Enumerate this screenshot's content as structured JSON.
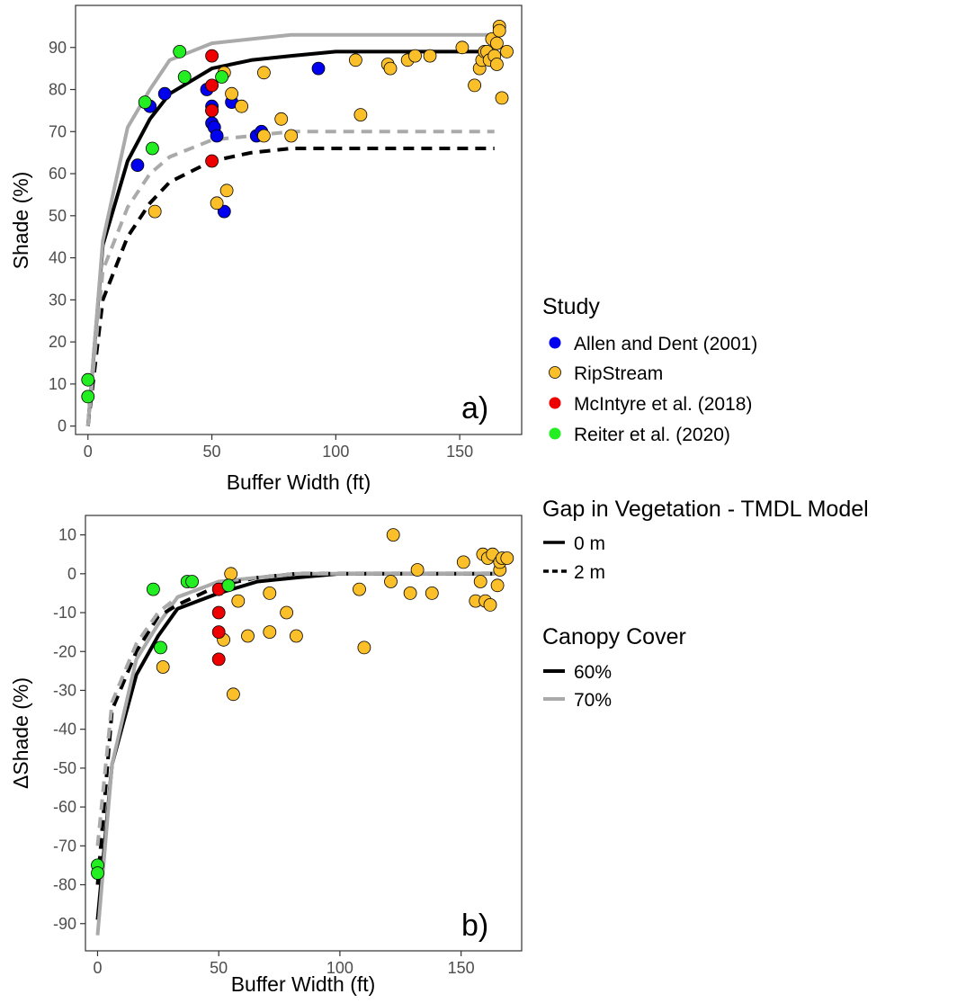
{
  "chart_data": [
    {
      "type": "scatter",
      "panel_label": "a)",
      "xlabel": "Buffer Width (ft)",
      "ylabel": "Shade (%)",
      "xlim": [
        -5,
        175
      ],
      "ylim": [
        -2,
        100
      ],
      "xticks": [
        0,
        50,
        100,
        150
      ],
      "yticks": [
        0,
        10,
        20,
        30,
        40,
        50,
        60,
        70,
        80,
        90
      ],
      "grid": false,
      "points": [
        {
          "study": "Allen and Dent (2001)",
          "values": [
            [
              20,
              62
            ],
            [
              25,
              76
            ],
            [
              31,
              79
            ],
            [
              48,
              80
            ],
            [
              50,
              72
            ],
            [
              50,
              76
            ],
            [
              50,
              75
            ],
            [
              51,
              71
            ],
            [
              52,
              69
            ],
            [
              58,
              77
            ],
            [
              68,
              69
            ],
            [
              70,
              70
            ],
            [
              93,
              85
            ],
            [
              55,
              51
            ]
          ]
        },
        {
          "study": "RipStream",
          "values": [
            [
              27,
              51
            ],
            [
              52,
              53
            ],
            [
              55,
              84
            ],
            [
              56,
              56
            ],
            [
              58,
              79
            ],
            [
              62,
              76
            ],
            [
              71,
              84
            ],
            [
              71,
              69
            ],
            [
              78,
              73
            ],
            [
              82,
              69
            ],
            [
              108,
              87
            ],
            [
              110,
              74
            ],
            [
              121,
              86
            ],
            [
              122,
              85
            ],
            [
              129,
              87
            ],
            [
              132,
              88
            ],
            [
              138,
              88
            ],
            [
              151,
              90
            ],
            [
              156,
              81
            ],
            [
              158,
              85
            ],
            [
              159,
              87
            ],
            [
              160,
              89
            ],
            [
              161,
              89
            ],
            [
              162,
              87
            ],
            [
              163,
              92
            ],
            [
              164,
              88
            ],
            [
              165,
              91
            ],
            [
              165,
              86
            ],
            [
              166,
              95
            ],
            [
              166,
              94
            ],
            [
              167,
              78
            ],
            [
              169,
              89
            ]
          ]
        },
        {
          "study": "McIntyre et al. (2018)",
          "values": [
            [
              50,
              88
            ],
            [
              50,
              81
            ],
            [
              50,
              75
            ],
            [
              50,
              63
            ]
          ]
        },
        {
          "study": "Reiter et al. (2020)",
          "values": [
            [
              0,
              11
            ],
            [
              0,
              7
            ],
            [
              23,
              77
            ],
            [
              26,
              66
            ],
            [
              37,
              89
            ],
            [
              39,
              83
            ],
            [
              54,
              83
            ]
          ]
        }
      ],
      "model_lines": [
        {
          "gap": "0 m",
          "canopy": "60%",
          "values": [
            [
              0,
              0
            ],
            [
              6,
              43
            ],
            [
              16,
              63
            ],
            [
              25,
              73
            ],
            [
              33,
              79
            ],
            [
              50,
              85
            ],
            [
              66,
              87
            ],
            [
              82,
              88
            ],
            [
              100,
              89
            ],
            [
              164,
              89
            ]
          ]
        },
        {
          "gap": "0 m",
          "canopy": "70%",
          "values": [
            [
              0,
              0
            ],
            [
              6,
              44
            ],
            [
              16,
              71
            ],
            [
              25,
              80
            ],
            [
              33,
              87
            ],
            [
              50,
              91
            ],
            [
              66,
              92
            ],
            [
              82,
              93
            ],
            [
              100,
              93
            ],
            [
              164,
              93
            ]
          ]
        },
        {
          "gap": "2 m",
          "canopy": "60%",
          "values": [
            [
              0,
              0
            ],
            [
              6,
              30
            ],
            [
              16,
              45
            ],
            [
              25,
              53
            ],
            [
              33,
              58
            ],
            [
              50,
              63
            ],
            [
              66,
              65
            ],
            [
              82,
              66
            ],
            [
              100,
              66
            ],
            [
              164,
              66
            ]
          ]
        },
        {
          "gap": "2 m",
          "canopy": "70%",
          "values": [
            [
              0,
              0
            ],
            [
              6,
              37
            ],
            [
              16,
              52
            ],
            [
              25,
              60
            ],
            [
              33,
              64
            ],
            [
              50,
              68
            ],
            [
              66,
              69
            ],
            [
              82,
              70
            ],
            [
              100,
              70
            ],
            [
              164,
              70
            ]
          ]
        }
      ]
    },
    {
      "type": "scatter",
      "panel_label": "b)",
      "xlabel": "Buffer Width (ft)",
      "ylabel": "ΔShade (%)",
      "xlim": [
        -5,
        175
      ],
      "ylim": [
        -97,
        15
      ],
      "xticks": [
        0,
        50,
        100,
        150
      ],
      "yticks": [
        10,
        0,
        -10,
        -20,
        -30,
        -40,
        -50,
        -60,
        -70,
        -80,
        -90
      ],
      "grid": false,
      "points": [
        {
          "study": "RipStream",
          "values": [
            [
              27,
              -24
            ],
            [
              52,
              -17
            ],
            [
              55,
              0
            ],
            [
              56,
              -31
            ],
            [
              58,
              -7
            ],
            [
              62,
              -16
            ],
            [
              71,
              -5
            ],
            [
              71,
              -15
            ],
            [
              78,
              -10
            ],
            [
              82,
              -16
            ],
            [
              108,
              -4
            ],
            [
              110,
              -19
            ],
            [
              121,
              -2
            ],
            [
              122,
              10
            ],
            [
              129,
              -5
            ],
            [
              132,
              1
            ],
            [
              138,
              -5
            ],
            [
              151,
              3
            ],
            [
              156,
              -7
            ],
            [
              158,
              -2
            ],
            [
              159,
              5
            ],
            [
              160,
              -7
            ],
            [
              161,
              4
            ],
            [
              162,
              -8
            ],
            [
              163,
              5
            ],
            [
              165,
              -3
            ],
            [
              166,
              1
            ],
            [
              166,
              3
            ],
            [
              167,
              4
            ],
            [
              169,
              4
            ]
          ]
        },
        {
          "study": "McIntyre et al. (2018)",
          "values": [
            [
              50,
              -4
            ],
            [
              50,
              -10
            ],
            [
              50,
              -15
            ],
            [
              50,
              -22
            ]
          ]
        },
        {
          "study": "Reiter et al. (2020)",
          "values": [
            [
              0,
              -75
            ],
            [
              0,
              -77
            ],
            [
              23,
              -4
            ],
            [
              26,
              -19
            ],
            [
              37,
              -2
            ],
            [
              39,
              -2
            ],
            [
              54,
              -3
            ]
          ]
        }
      ],
      "model_lines": [
        {
          "gap": "0 m",
          "canopy": "60%",
          "values": [
            [
              0,
              -89
            ],
            [
              6,
              -49
            ],
            [
              16,
              -26
            ],
            [
              25,
              -16
            ],
            [
              33,
              -9
            ],
            [
              50,
              -5
            ],
            [
              66,
              -2
            ],
            [
              82,
              -1
            ],
            [
              100,
              0
            ],
            [
              164,
              0
            ]
          ]
        },
        {
          "gap": "0 m",
          "canopy": "70%",
          "values": [
            [
              0,
              -93
            ],
            [
              6,
              -49
            ],
            [
              16,
              -22
            ],
            [
              25,
              -13
            ],
            [
              33,
              -6
            ],
            [
              50,
              -2
            ],
            [
              66,
              -1
            ],
            [
              82,
              0
            ],
            [
              100,
              0
            ],
            [
              164,
              0
            ]
          ]
        },
        {
          "gap": "2 m",
          "canopy": "60%",
          "values": [
            [
              0,
              -80
            ],
            [
              6,
              -35
            ],
            [
              16,
              -20
            ],
            [
              25,
              -11
            ],
            [
              33,
              -8
            ],
            [
              50,
              -3
            ],
            [
              66,
              -1
            ],
            [
              82,
              0
            ],
            [
              100,
              0
            ],
            [
              164,
              0
            ]
          ]
        },
        {
          "gap": "2 m",
          "canopy": "70%",
          "values": [
            [
              0,
              -70
            ],
            [
              6,
              -33
            ],
            [
              16,
              -18
            ],
            [
              25,
              -10
            ],
            [
              33,
              -6
            ],
            [
              50,
              -2
            ],
            [
              66,
              -1
            ],
            [
              82,
              0
            ],
            [
              100,
              0
            ],
            [
              164,
              0
            ]
          ]
        }
      ]
    }
  ],
  "legend": {
    "study": {
      "title": "Study",
      "entries": [
        {
          "label": "Allen and Dent (2001)",
          "color": "#0000ee"
        },
        {
          "label": "RipStream",
          "color": "#fbbf2a"
        },
        {
          "label": "McIntyre et al. (2018)",
          "color": "#ee0000"
        },
        {
          "label": "Reiter et al. (2020)",
          "color": "#22ee22"
        }
      ]
    },
    "gap": {
      "title": "Gap in Vegetation - TMDL Model",
      "entries": [
        {
          "label": "0 m",
          "style": "solid"
        },
        {
          "label": "2 m",
          "style": "dashed"
        }
      ]
    },
    "canopy": {
      "title": "Canopy Cover",
      "entries": [
        {
          "label": "60%",
          "color": "#000000"
        },
        {
          "label": "70%",
          "color": "#aaaaaa"
        }
      ]
    }
  }
}
